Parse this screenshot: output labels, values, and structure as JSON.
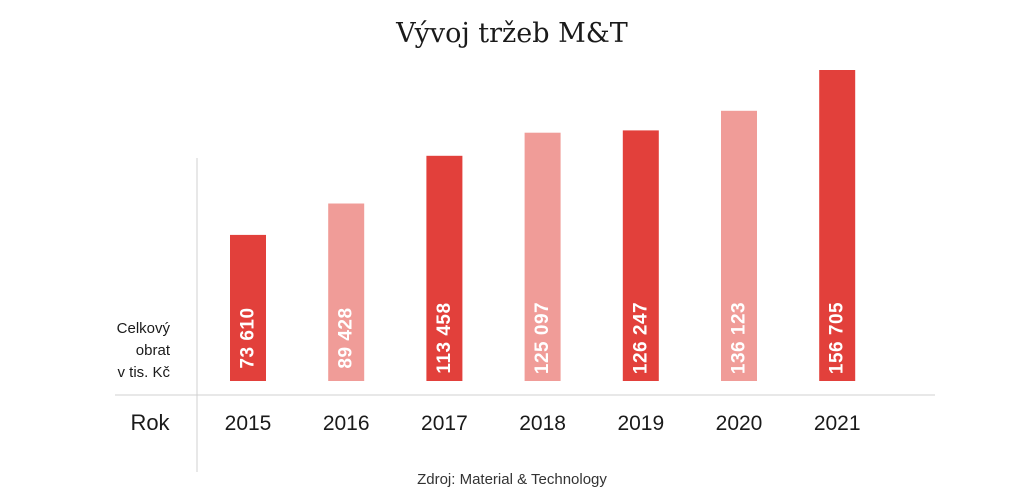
{
  "chart_data": {
    "type": "bar",
    "title": "Vývoj tržeb M&T",
    "ylabel": [
      "Celkový",
      "obrat",
      "v tis. Kč"
    ],
    "xlabel": "Rok",
    "categories": [
      "2015",
      "2016",
      "2017",
      "2018",
      "2019",
      "2020",
      "2021"
    ],
    "values": [
      73610,
      89428,
      113458,
      125097,
      126247,
      136123,
      156705
    ],
    "value_labels": [
      "73 610",
      "89 428",
      "113 458",
      "125 097",
      "126 247",
      "136 123",
      "156 705"
    ],
    "bar_colors": [
      "#e2403b",
      "#f09c98",
      "#e2403b",
      "#f09c98",
      "#e2403b",
      "#f09c98",
      "#e2403b"
    ],
    "grid": false,
    "source": "Zdroj: Material & Technology"
  }
}
